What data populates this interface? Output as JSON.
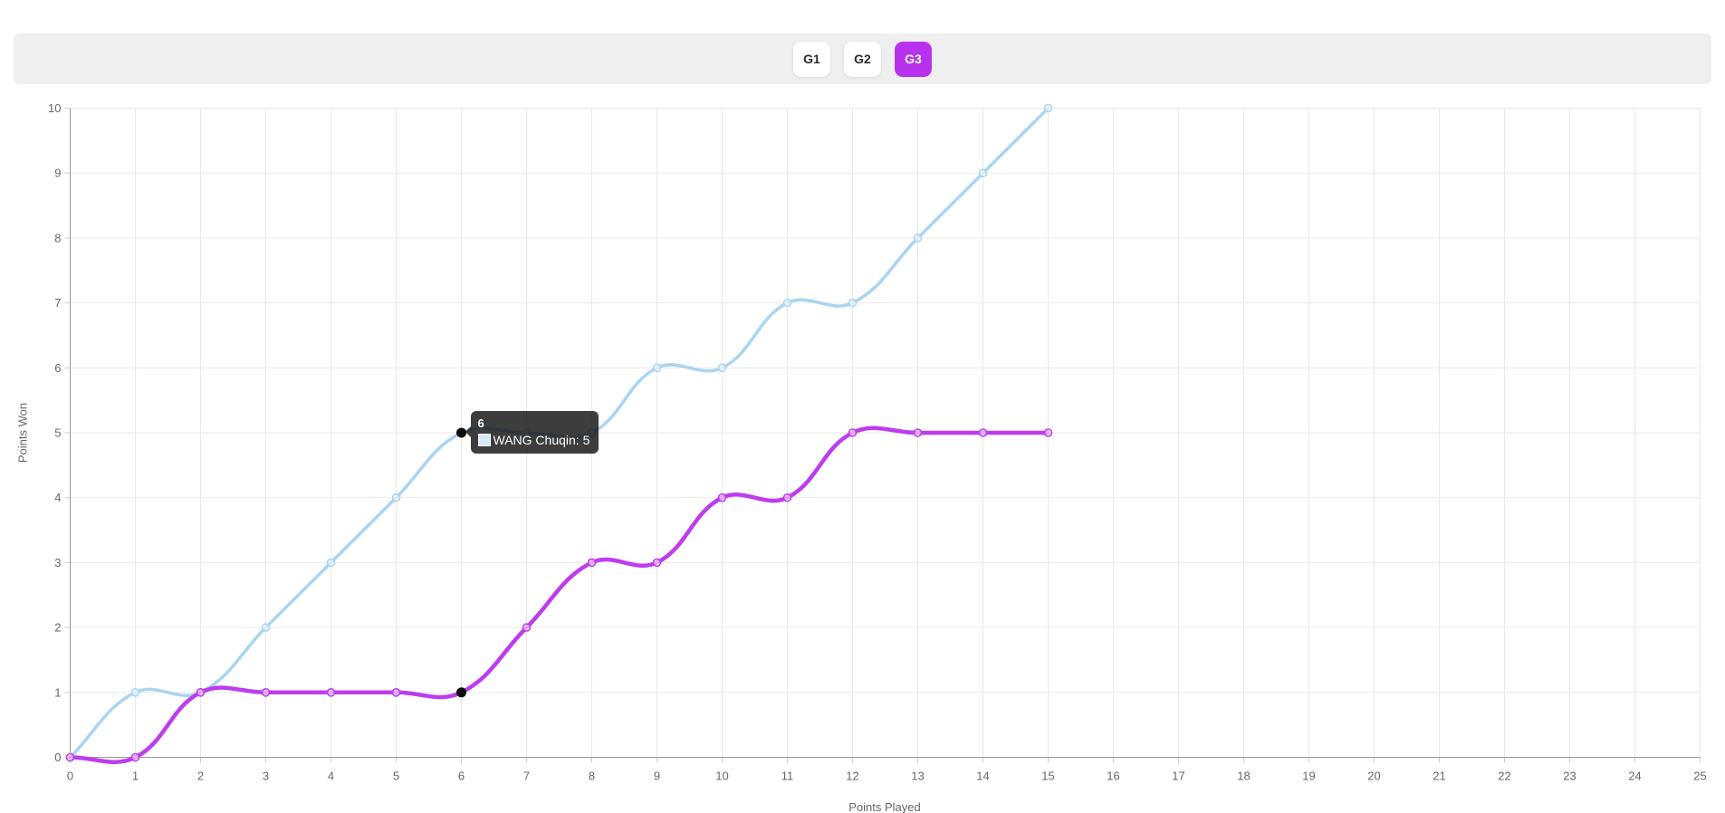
{
  "colors": {
    "page_bg": "#ffffff",
    "toolbar_bg": "#efefef",
    "button_bg": "#ffffff",
    "button_text": "#2a2a33",
    "active_button_bg": "#b832ee",
    "active_button_text": "#ffffff",
    "grid": "#e9e9e9",
    "axis_border": "#9a9a9a",
    "tick_mark": "#cccccc",
    "tick_text": "#666666",
    "hover_point": "#0d0d0d",
    "tooltip_bg": "rgba(18,18,18,0.82)",
    "tooltip_text": "#ffffff"
  },
  "toolbar": {
    "buttons": [
      {
        "label": "G1",
        "active": false
      },
      {
        "label": "G2",
        "active": false
      },
      {
        "label": "G3",
        "active": true
      }
    ]
  },
  "chart_data": {
    "type": "line",
    "x": [
      0,
      1,
      2,
      3,
      4,
      5,
      6,
      7,
      8,
      9,
      10,
      11,
      12,
      13,
      14,
      15
    ],
    "series": [
      {
        "name": "WANG Chuqin",
        "color": "#a9d4f1",
        "values": [
          0,
          1,
          1,
          2,
          3,
          4,
          5,
          5,
          5,
          6,
          6,
          7,
          7,
          8,
          9,
          10
        ]
      },
      {
        "name": "",
        "color": "#bd3cee",
        "values": [
          0,
          0,
          1,
          1,
          1,
          1,
          1,
          2,
          3,
          3,
          4,
          4,
          5,
          5,
          5,
          5
        ]
      }
    ],
    "xlabel": "Points Played",
    "ylabel": "Points Won",
    "xlim": [
      0,
      25
    ],
    "ylim": [
      0,
      10
    ],
    "x_ticks": [
      0,
      1,
      2,
      3,
      4,
      5,
      6,
      7,
      8,
      9,
      10,
      11,
      12,
      13,
      14,
      15,
      16,
      17,
      18,
      19,
      20,
      21,
      22,
      23,
      24,
      25
    ],
    "y_ticks": [
      0,
      1,
      2,
      3,
      4,
      5,
      6,
      7,
      8,
      9,
      10
    ],
    "grid": true,
    "legend": "none",
    "smoothing": "cubic-tension-0.4",
    "hover": {
      "x": 6,
      "point_values": [
        5,
        1
      ]
    }
  },
  "tooltip": {
    "title": "6",
    "rows": [
      {
        "label": "WANG Chuqin",
        "value": 5,
        "swatch_color": "#d9e9f8"
      }
    ]
  }
}
